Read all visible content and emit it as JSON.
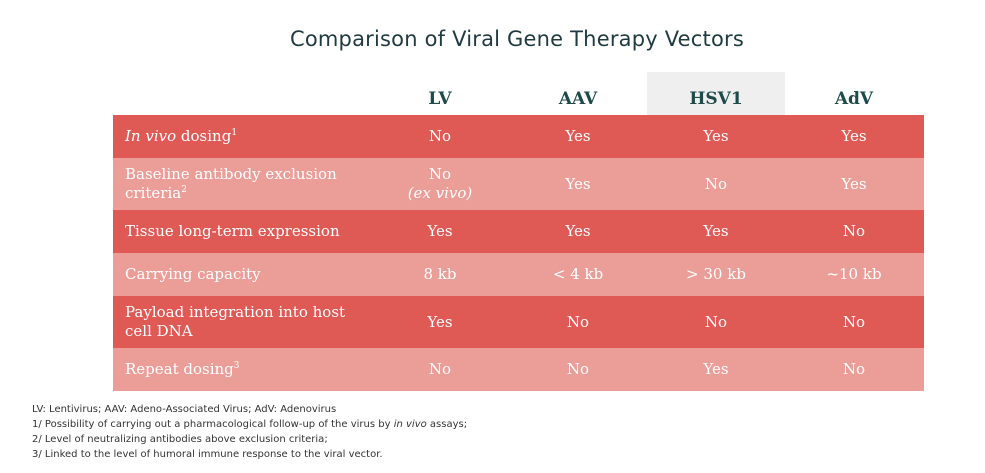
{
  "title": "Comparison of Viral Gene Therapy Vectors",
  "columns": [
    "LV",
    "AAV",
    "HSV1",
    "AdV"
  ],
  "rows": [
    {
      "label_italic": "In vivo",
      "label_rest": " dosing",
      "sup": "1",
      "values": [
        "No",
        "Yes",
        "Yes",
        "Yes"
      ]
    },
    {
      "label_line1": "Baseline antibody exclusion",
      "label_line2": "criteria",
      "sup": "2",
      "lv_line1": "No",
      "lv_line2": "(ex vivo)",
      "values": [
        "Yes",
        "No",
        "Yes"
      ]
    },
    {
      "label": "Tissue long-term expression",
      "values": [
        "Yes",
        "Yes",
        "Yes",
        "No"
      ]
    },
    {
      "label": "Carrying capacity",
      "values": [
        "8 kb",
        "< 4 kb",
        "> 30 kb",
        "~10 kb"
      ]
    },
    {
      "label_line1": "Payload integration into host",
      "label_line2": "cell DNA",
      "values": [
        "Yes",
        "No",
        "No",
        "No"
      ]
    },
    {
      "label": "Repeat dosing",
      "sup": "3",
      "values": [
        "No",
        "No",
        "Yes",
        "No"
      ]
    }
  ],
  "notes": {
    "legend": "LV: Lentivirus; AAV: Adeno-Associated Virus; AdV: Adenovirus",
    "n1_pre": "1/ Possibility of carrying out a pharmacological follow-up of the virus by ",
    "n1_italic": "in vivo",
    "n1_post": " assays;",
    "n2": "2/ Level of neutralizing antibodies above exclusion criteria;",
    "n3": "3/ Linked to the level of humoral immune response to the viral vector."
  },
  "colors": {
    "dark_row": "#e05a55",
    "light_row": "#eb9d98",
    "header_highlight": "#efefef",
    "header_text": "#1f4a4a"
  }
}
